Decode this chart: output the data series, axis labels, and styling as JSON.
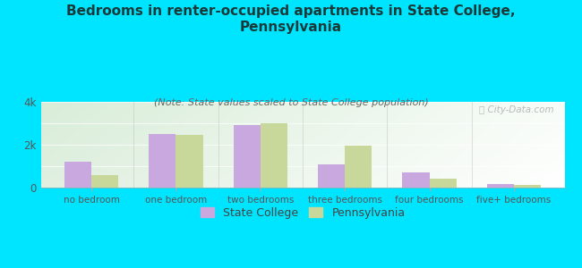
{
  "title": "Bedrooms in renter-occupied apartments in State College,\nPennsylvania",
  "subtitle": "(Note: State values scaled to State College population)",
  "categories": [
    "no bedroom",
    "one bedroom",
    "two bedrooms",
    "three bedrooms",
    "four bedrooms",
    "five+ bedrooms"
  ],
  "state_college_values": [
    1200,
    2500,
    2900,
    1100,
    700,
    175
  ],
  "pennsylvania_values": [
    580,
    2450,
    3000,
    1950,
    430,
    145
  ],
  "state_college_color": "#c9a8e0",
  "pennsylvania_color": "#c8d89a",
  "background_color": "#00e5ff",
  "ylim": [
    0,
    4000
  ],
  "ytick_labels": [
    "0",
    "2k",
    "4k"
  ],
  "bar_width": 0.32,
  "title_fontsize": 11,
  "subtitle_fontsize": 8,
  "legend_labels": [
    "State College",
    "Pennsylvania"
  ],
  "watermark": "ⓘ City-Data.com"
}
